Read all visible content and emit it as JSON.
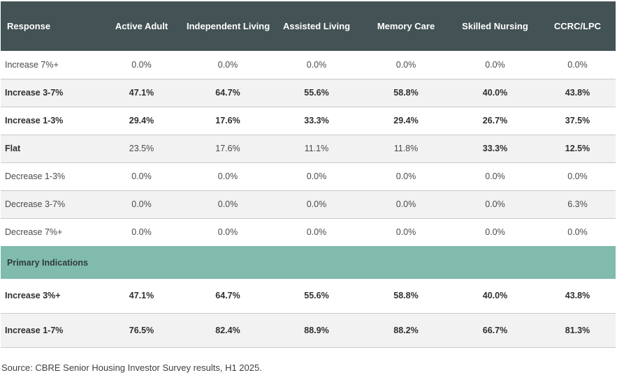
{
  "table": {
    "headers": [
      "Response",
      "Active Adult",
      "Independent Living",
      "Assisted Living",
      "Memory Care",
      "Skilled Nursing",
      "CCRC/LPC"
    ],
    "rows": [
      {
        "label": "Increase 7%+",
        "values": [
          "0.0%",
          "0.0%",
          "0.0%",
          "0.0%",
          "0.0%",
          "0.0%"
        ]
      },
      {
        "label": "Increase 3-7%",
        "values": [
          "47.1%",
          "64.7%",
          "55.6%",
          "58.8%",
          "40.0%",
          "43.8%"
        ]
      },
      {
        "label": "Increase 1-3%",
        "values": [
          "29.4%",
          "17.6%",
          "33.3%",
          "29.4%",
          "26.7%",
          "37.5%"
        ]
      },
      {
        "label": "Flat",
        "values": [
          "23.5%",
          "17.6%",
          "11.1%",
          "11.8%",
          "33.3%",
          "12.5%"
        ]
      },
      {
        "label": "Decrease 1-3%",
        "values": [
          "0.0%",
          "0.0%",
          "0.0%",
          "0.0%",
          "0.0%",
          "0.0%"
        ]
      },
      {
        "label": "Decrease 3-7%",
        "values": [
          "0.0%",
          "0.0%",
          "0.0%",
          "0.0%",
          "0.0%",
          "6.3%"
        ]
      },
      {
        "label": "Decrease 7%+",
        "values": [
          "0.0%",
          "0.0%",
          "0.0%",
          "0.0%",
          "0.0%",
          "0.0%"
        ]
      }
    ],
    "section_title": "Primary Indications",
    "primary_rows": [
      {
        "label": "Increase 3%+",
        "values": [
          "47.1%",
          "64.7%",
          "55.6%",
          "58.8%",
          "40.0%",
          "43.8%"
        ]
      },
      {
        "label": "Increase 1-7%",
        "values": [
          "76.5%",
          "82.4%",
          "88.9%",
          "88.2%",
          "66.7%",
          "81.3%"
        ]
      }
    ]
  },
  "source_note": "Source: CBRE Senior Housing Investor Survey results, H1 2025.",
  "colors": {
    "header_bg": "#435254",
    "section_bg": "#80bbad",
    "shaded_row_bg": "#f2f2f2"
  }
}
